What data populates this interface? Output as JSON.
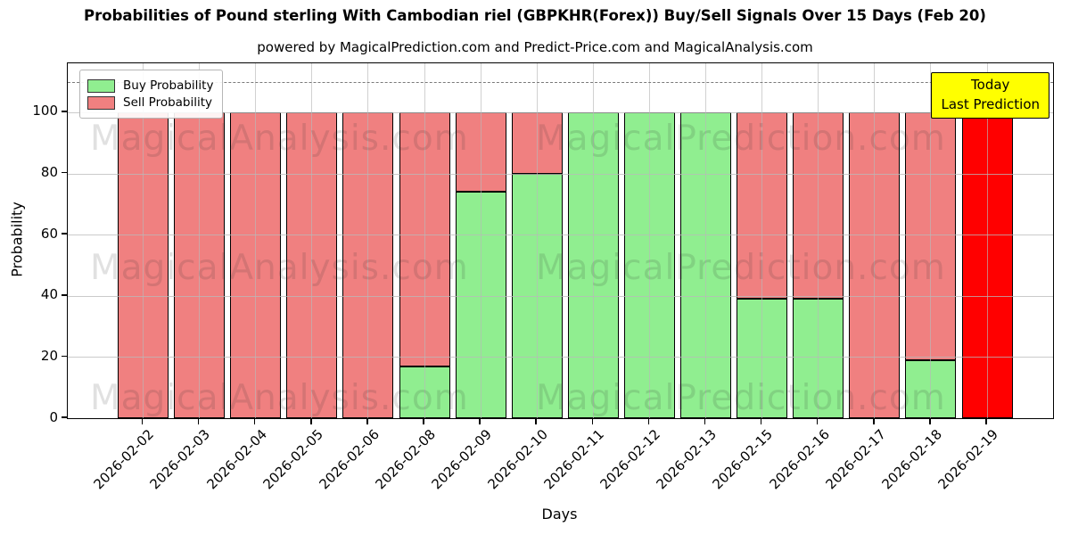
{
  "header": {
    "title": "Probabilities of Pound sterling With Cambodian riel (GBPKHR(Forex)) Buy/Sell Signals Over 15 Days (Feb 20)",
    "subtitle": "powered by MagicalPrediction.com and Predict-Price.com and MagicalAnalysis.com"
  },
  "legend": {
    "position": "upper left",
    "buy_label": "Buy Probability",
    "sell_label": "Sell Probability"
  },
  "annotation_box": {
    "line1": "Today",
    "line2": "Last Prediction",
    "bg_color": "#ffff00"
  },
  "watermarks": {
    "left_text": "MagicalAnalysis.com",
    "right_text": "MagicalPrediction.com"
  },
  "colors": {
    "buy": "#90ee90",
    "sell": "#f08080",
    "today_bar": "#ff0000",
    "bar_edge": "#000000",
    "grid": "#b9b9b9",
    "dashed_line": "#7a7a7a"
  },
  "chart_data": {
    "type": "bar",
    "stacked": true,
    "title": "Probabilities of Pound sterling With Cambodian riel (GBPKHR(Forex)) Buy/Sell Signals Over 15 Days (Feb 20)",
    "xlabel": "Days",
    "ylabel": "Probability",
    "categories": [
      "2026-02-02",
      "2026-02-03",
      "2026-02-04",
      "2026-02-05",
      "2026-02-06",
      "2026-02-08",
      "2026-02-09",
      "2026-02-10",
      "2026-02-11",
      "2026-02-12",
      "2026-02-13",
      "2026-02-15",
      "2026-02-16",
      "2026-02-17",
      "2026-02-18",
      "2026-02-19"
    ],
    "series": [
      {
        "name": "Buy Probability",
        "color": "#90ee90",
        "values": [
          0,
          0,
          0,
          0,
          0,
          17,
          74,
          80,
          100,
          100,
          100,
          39,
          39,
          0,
          19,
          0
        ]
      },
      {
        "name": "Sell Probability",
        "color": "#f08080",
        "values": [
          100,
          100,
          100,
          100,
          100,
          83,
          26,
          20,
          0,
          0,
          0,
          61,
          61,
          100,
          81,
          100
        ]
      }
    ],
    "today": {
      "index": 15,
      "category": "2026-02-19",
      "color": "#ff0000"
    },
    "yticks": [
      0,
      20,
      40,
      60,
      80,
      100
    ],
    "ylim": [
      0,
      116
    ],
    "dashed_line_y": 110,
    "grid": true,
    "legend_position": "upper left"
  }
}
